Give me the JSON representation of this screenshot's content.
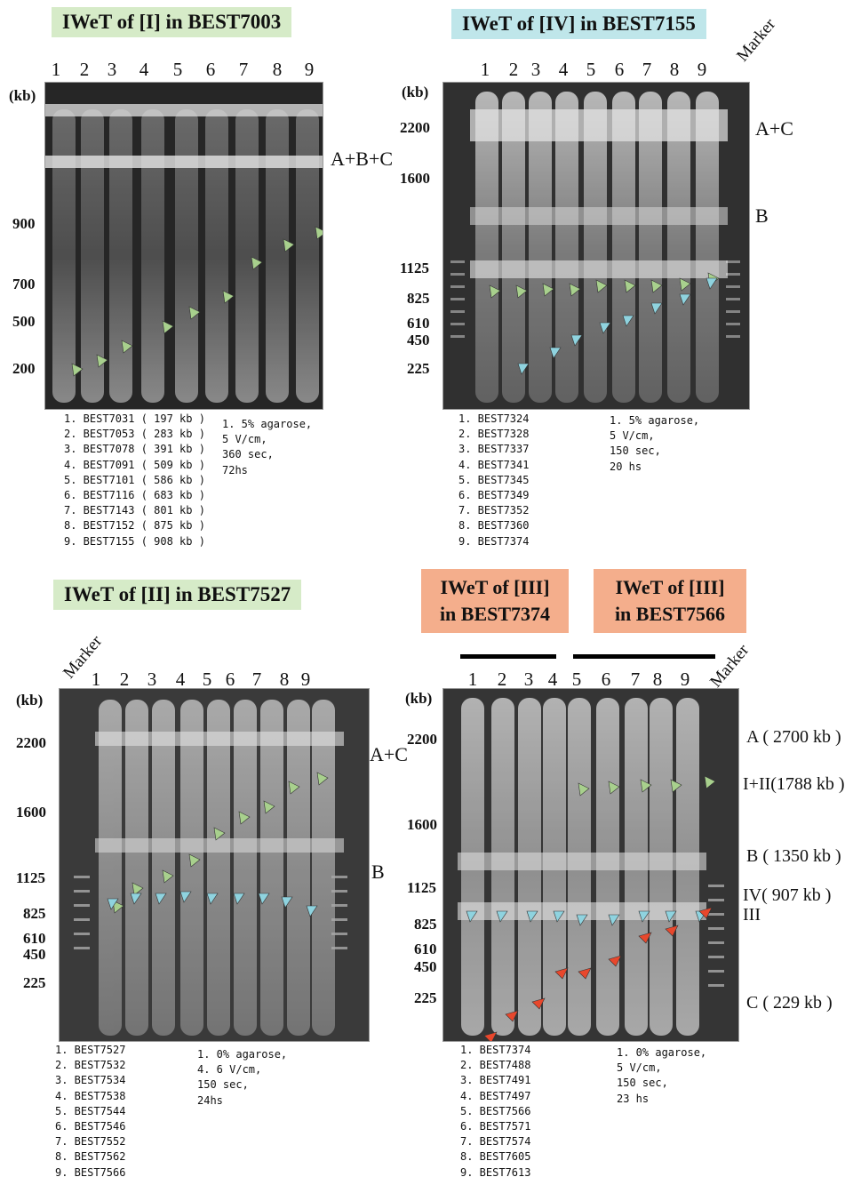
{
  "panels": {
    "p1": {
      "title": "IWeT of [I] in BEST7003",
      "lanes": [
        "1",
        "2",
        "3",
        "4",
        "5",
        "6",
        "7",
        "8",
        "9"
      ],
      "kb_label": "(kb)",
      "sizes": [
        "900",
        "700",
        "500",
        "200"
      ],
      "band_label": "A+B+C",
      "legend": [
        "1. BEST7031 ( 197 kb )",
        "2. BEST7053 ( 283 kb )",
        "3. BEST7078 ( 391 kb )",
        "4. BEST7091 ( 509 kb )",
        "5. BEST7101 ( 586 kb )",
        "6. BEST7116 ( 683 kb )",
        "7. BEST7143 ( 801 kb )",
        "8. BEST7152 ( 875 kb )",
        "9. BEST7155 ( 908 kb )"
      ],
      "conditions": [
        "1. 5% agarose,",
        "5 V/cm,",
        "360 sec,",
        "72hs"
      ]
    },
    "p2": {
      "title": "IWeT of [IV] in BEST7155",
      "marker": "Marker",
      "lanes": [
        "1",
        "2",
        "3",
        "4",
        "5",
        "6",
        "7",
        "8",
        "9"
      ],
      "kb_label": "(kb)",
      "sizes": [
        "2200",
        "1600",
        "1125",
        "825",
        "610",
        "450",
        "225"
      ],
      "band_labels": [
        "A+C",
        "B"
      ],
      "legend": [
        "1. BEST7324",
        "2. BEST7328",
        "3. BEST7337",
        "4. BEST7341",
        "5. BEST7345",
        "6. BEST7349",
        "7. BEST7352",
        "8. BEST7360",
        "9. BEST7374"
      ],
      "conditions": [
        "1. 5% agarose,",
        "5 V/cm,",
        "150 sec,",
        "20 hs"
      ]
    },
    "p3": {
      "title": "IWeT of [II] in BEST7527",
      "marker": "Marker",
      "lanes": [
        "1",
        "2",
        "3",
        "4",
        "5",
        "6",
        "7",
        "8",
        "9"
      ],
      "kb_label": "(kb)",
      "sizes": [
        "2200",
        "1600",
        "1125",
        "825",
        "610",
        "450",
        "225"
      ],
      "band_labels": [
        "A+C",
        "B"
      ],
      "legend": [
        "1. BEST7527",
        "2. BEST7532",
        "3. BEST7534",
        "4. BEST7538",
        "5. BEST7544",
        "6. BEST7546",
        "7. BEST7552",
        "8. BEST7562",
        "9. BEST7566"
      ],
      "conditions": [
        "1. 0% agarose,",
        "4. 6 V/cm,",
        "150 sec,",
        "24hs"
      ]
    },
    "p4": {
      "title_a": [
        "IWeT of [III]",
        "in BEST7374"
      ],
      "title_b": [
        "IWeT of [III]",
        "in BEST7566"
      ],
      "marker": "Marker",
      "lanes": [
        "1",
        "2",
        "3",
        "4",
        "5",
        "6",
        "7",
        "8",
        "9"
      ],
      "kb_label": "(kb)",
      "sizes": [
        "2200",
        "1600",
        "1125",
        "825",
        "610",
        "450",
        "225"
      ],
      "band_labels": [
        "A ( 2700 kb )",
        "I+II(1788 kb )",
        "B ( 1350 kb )",
        "IV( 907 kb )",
        "III",
        "C ( 229 kb )"
      ],
      "legend": [
        "1. BEST7374",
        "2. BEST7488",
        "3. BEST7491",
        "4. BEST7497",
        "5. BEST7566",
        "6. BEST7571",
        "7. BEST7574",
        "8. BEST7605",
        "9. BEST7613"
      ],
      "conditions": [
        "1. 0% agarose,",
        "5 V/cm,",
        "150 sec,",
        "23 hs"
      ]
    }
  },
  "colors": {
    "green_arrow": "#a8d08d",
    "cyan_arrow": "#8fd3df",
    "red_arrow": "#e8472c"
  }
}
